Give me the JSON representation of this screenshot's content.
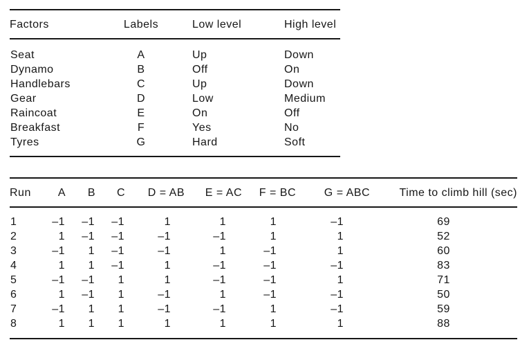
{
  "factors_table": {
    "headers": [
      "Factors",
      "Labels",
      "Low level",
      "High level"
    ],
    "rows": [
      [
        "Seat",
        "A",
        "Up",
        "Down"
      ],
      [
        "Dynamo",
        "B",
        "Off",
        "On"
      ],
      [
        "Handlebars",
        "C",
        "Up",
        "Down"
      ],
      [
        "Gear",
        "D",
        "Low",
        "Medium"
      ],
      [
        "Raincoat",
        "E",
        "On",
        "Off"
      ],
      [
        "Breakfast",
        "F",
        "Yes",
        "No"
      ],
      [
        "Tyres",
        "G",
        "Hard",
        "Soft"
      ]
    ]
  },
  "design_table": {
    "headers": [
      "Run",
      "A",
      "B",
      "C",
      "D = AB",
      "E = AC",
      "F = BC",
      "G = ABC",
      "Time to climb hill (sec)"
    ],
    "rows": [
      [
        "1",
        "–1",
        "–1",
        "–1",
        "1",
        "1",
        "1",
        "–1",
        "69"
      ],
      [
        "2",
        "1",
        "–1",
        "–1",
        "–1",
        "–1",
        "1",
        "1",
        "52"
      ],
      [
        "3",
        "–1",
        "1",
        "–1",
        "–1",
        "1",
        "–1",
        "1",
        "60"
      ],
      [
        "4",
        "1",
        "1",
        "–1",
        "1",
        "–1",
        "–1",
        "–1",
        "83"
      ],
      [
        "5",
        "–1",
        "–1",
        "1",
        "1",
        "–1",
        "–1",
        "1",
        "71"
      ],
      [
        "6",
        "1",
        "–1",
        "1",
        "–1",
        "1",
        "–1",
        "–1",
        "50"
      ],
      [
        "7",
        "–1",
        "1",
        "1",
        "–1",
        "–1",
        "1",
        "–1",
        "59"
      ],
      [
        "8",
        "1",
        "1",
        "1",
        "1",
        "1",
        "1",
        "1",
        "88"
      ]
    ]
  },
  "colors": {
    "text": "#161616",
    "rule": "#161616",
    "background": "#ffffff"
  }
}
